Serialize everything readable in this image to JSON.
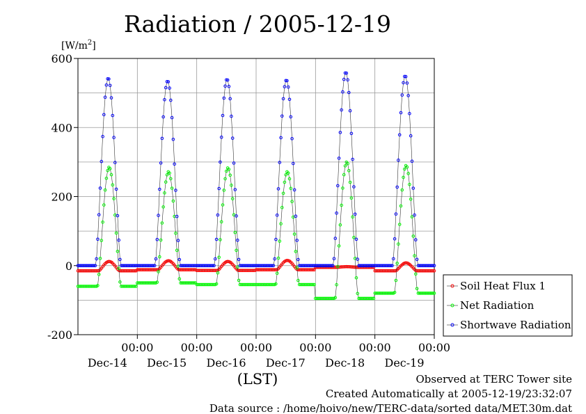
{
  "chart_data": {
    "type": "line",
    "title": "Radiation / 2005-12-19",
    "ylabel_unit": "[W/m",
    "ylabel_unit_sup": "2",
    "ylabel_unit_close": "]",
    "xlabel": "(LST)",
    "ylim": [
      -200,
      600
    ],
    "yticks": [
      -200,
      0,
      200,
      400,
      600
    ],
    "xlim_days": [
      0,
      6
    ],
    "xticks": [
      {
        "day": 1,
        "time": "00:00",
        "date": "Dec-14"
      },
      {
        "day": 2,
        "time": "00:00",
        "date": "Dec-15"
      },
      {
        "day": 3,
        "time": "00:00",
        "date": "Dec-16"
      },
      {
        "day": 4,
        "time": "00:00",
        "date": "Dec-17"
      },
      {
        "day": 5,
        "time": "00:00",
        "date": "Dec-18"
      },
      {
        "day": 6,
        "time": "00:00",
        "date": "Dec-19"
      }
    ],
    "grid": true,
    "legend_position": "right",
    "series": [
      {
        "name": "Soil Heat Flux 1",
        "color": "#ff0000",
        "days": [
          {
            "night": -15,
            "peak": 12,
            "rise": 0.35,
            "set": 0.7
          },
          {
            "night": -12,
            "peak": 14,
            "rise": 0.35,
            "set": 0.7
          },
          {
            "night": -14,
            "peak": 12,
            "rise": 0.35,
            "set": 0.7
          },
          {
            "night": -12,
            "peak": 15,
            "rise": 0.35,
            "set": 0.7
          },
          {
            "night": -5,
            "peak": -3,
            "rise": 0.35,
            "set": 0.7
          },
          {
            "night": -15,
            "peak": 8,
            "rise": 0.35,
            "set": 0.7
          }
        ]
      },
      {
        "name": "Net Radiation",
        "color": "#00ff00",
        "days": [
          {
            "night": -60,
            "peak": 285,
            "rise": 0.33,
            "set": 0.72
          },
          {
            "night": -50,
            "peak": 272,
            "rise": 0.33,
            "set": 0.72
          },
          {
            "night": -55,
            "peak": 283,
            "rise": 0.33,
            "set": 0.72
          },
          {
            "night": -55,
            "peak": 272,
            "rise": 0.33,
            "set": 0.72
          },
          {
            "night": -95,
            "peak": 300,
            "rise": 0.33,
            "set": 0.72
          },
          {
            "night": -80,
            "peak": 290,
            "rise": 0.33,
            "set": 0.72
          }
        ]
      },
      {
        "name": "Shortwave Radiation",
        "color": "#0000ff",
        "days": [
          {
            "night": 0,
            "peak": 543,
            "rise": 0.3,
            "set": 0.72
          },
          {
            "night": 0,
            "peak": 535,
            "rise": 0.3,
            "set": 0.72
          },
          {
            "night": 0,
            "peak": 540,
            "rise": 0.3,
            "set": 0.72
          },
          {
            "night": 0,
            "peak": 538,
            "rise": 0.3,
            "set": 0.72
          },
          {
            "night": 0,
            "peak": 560,
            "rise": 0.3,
            "set": 0.72
          },
          {
            "night": 0,
            "peak": 550,
            "rise": 0.3,
            "set": 0.72
          }
        ]
      }
    ]
  },
  "footer": {
    "line1": "Observed at TERC Tower site",
    "line2": "Created Automatically at 2005-12-19/23:32:07",
    "line3": "Data source : /home/hoivo/new/TERC-data/sorted  data/MET.30m.dat"
  }
}
